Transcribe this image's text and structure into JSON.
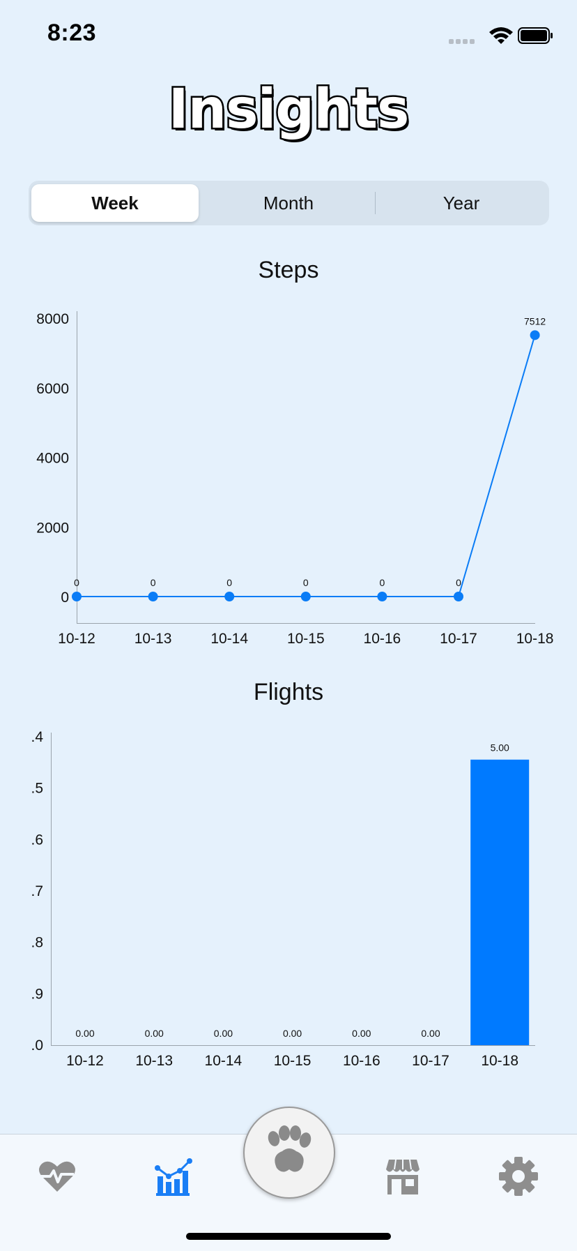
{
  "status_bar": {
    "time": "8:23"
  },
  "app_title": "Insights",
  "segmented_control": {
    "options": [
      "Week",
      "Month",
      "Year"
    ],
    "selected": "Week"
  },
  "steps_chart": {
    "title": "Steps"
  },
  "flights_chart": {
    "title": "Flights"
  },
  "chart_data": [
    {
      "type": "line",
      "title": "Steps",
      "categories": [
        "10-12",
        "10-13",
        "10-14",
        "10-15",
        "10-16",
        "10-17",
        "10-18"
      ],
      "values": [
        0,
        0,
        0,
        0,
        0,
        0,
        7512
      ],
      "value_labels": [
        "0",
        "0",
        "0",
        "0",
        "0",
        "0",
        "7512"
      ],
      "y_ticks": [
        "8000",
        "6000",
        "4000",
        "2000",
        "0"
      ],
      "ylim": [
        0,
        8000
      ],
      "color": "#0a7cf6",
      "grid": false
    },
    {
      "type": "bar",
      "title": "Flights",
      "categories": [
        "10-12",
        "10-13",
        "10-14",
        "10-15",
        "10-16",
        "10-17",
        "10-18"
      ],
      "values": [
        0,
        0,
        0,
        0,
        0,
        0,
        5
      ],
      "value_labels": [
        "0.00",
        "0.00",
        "0.00",
        "0.00",
        "0.00",
        "0.00",
        "5.00"
      ],
      "y_ticks": [
        ".4",
        ".5",
        ".6",
        ".7",
        ".8",
        ".9",
        ".0"
      ],
      "ylim": [
        0,
        5.4
      ],
      "color": "#007aff",
      "grid": false
    }
  ],
  "tab_bar": {
    "items": [
      "heart-pulse-icon",
      "insights-chart-icon",
      "paw-icon",
      "store-icon",
      "gear-icon"
    ],
    "active": "insights-chart-icon",
    "active_color": "#1a7ef5",
    "inactive_color": "#8e8e8e"
  }
}
